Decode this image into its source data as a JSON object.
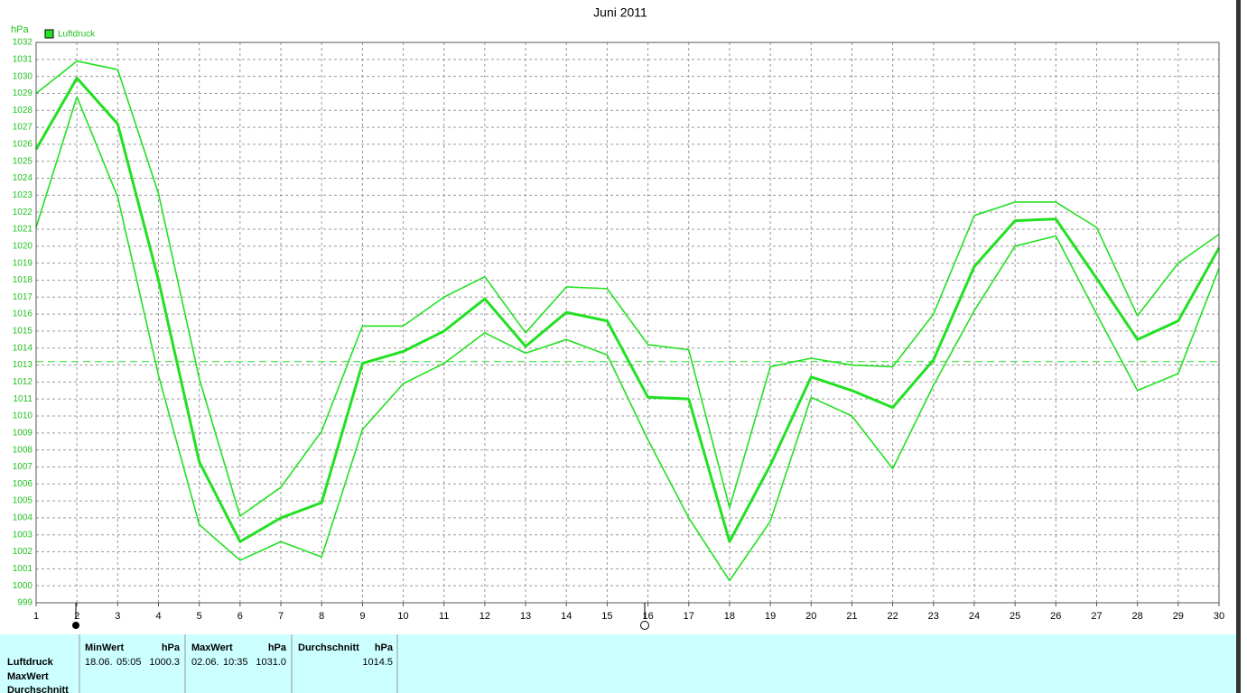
{
  "chart_data": {
    "type": "line",
    "title": "Juni 2011",
    "y_unit": "hPa",
    "x": [
      1,
      2,
      3,
      4,
      5,
      6,
      7,
      8,
      9,
      10,
      11,
      12,
      13,
      14,
      15,
      16,
      17,
      18,
      19,
      20,
      21,
      22,
      23,
      24,
      25,
      26,
      27,
      28,
      29,
      30
    ],
    "xlim": [
      1,
      30
    ],
    "xticks": [
      1,
      2,
      3,
      4,
      5,
      6,
      7,
      8,
      9,
      10,
      11,
      12,
      13,
      14,
      15,
      16,
      17,
      18,
      19,
      20,
      21,
      22,
      23,
      24,
      25,
      26,
      27,
      28,
      29,
      30
    ],
    "ylim": [
      999,
      1032
    ],
    "yticks": [
      999,
      1000,
      1001,
      1002,
      1003,
      1004,
      1005,
      1006,
      1007,
      1008,
      1009,
      1010,
      1011,
      1012,
      1013,
      1014,
      1015,
      1016,
      1017,
      1018,
      1019,
      1020,
      1021,
      1022,
      1023,
      1024,
      1025,
      1026,
      1027,
      1028,
      1029,
      1030,
      1031,
      1032
    ],
    "grid": true,
    "legend": "top-left",
    "series": [
      {
        "name": "Luftdruck",
        "color": "#22e022",
        "values": [
          1025.7,
          1029.9,
          1027.2,
          1018.0,
          1007.3,
          1002.6,
          1004.0,
          1004.9,
          1013.1,
          1013.8,
          1015.0,
          1016.9,
          1014.1,
          1016.1,
          1015.6,
          1011.1,
          1011.0,
          1002.6,
          1007.1,
          1012.3,
          1011.5,
          1010.5,
          1013.3,
          1018.8,
          1021.5,
          1021.6,
          1018.1,
          1014.5,
          1015.6,
          1019.9
        ]
      },
      {
        "color": "#22e022",
        "values": [
          1029.0,
          1030.9,
          1030.4,
          1023.1,
          1012.2,
          1004.1,
          1005.8,
          1009.1,
          1015.3,
          1015.3,
          1017.0,
          1018.2,
          1014.9,
          1017.6,
          1017.5,
          1014.2,
          1013.9,
          1004.6,
          1012.9,
          1013.4,
          1013.0,
          1012.9,
          1016.0,
          1021.8,
          1022.6,
          1022.6,
          1021.1,
          1015.9,
          1019.0,
          1020.7
        ]
      },
      {
        "color": "#22e022",
        "values": [
          1021.1,
          1028.8,
          1022.9,
          1012.4,
          1003.6,
          1001.5,
          1002.6,
          1001.7,
          1009.2,
          1011.9,
          1013.1,
          1014.9,
          1013.7,
          1014.5,
          1013.6,
          1008.6,
          1004.0,
          1000.3,
          1003.8,
          1011.1,
          1010.0,
          1006.9,
          1011.8,
          1016.2,
          1020.0,
          1020.6,
          1016.0,
          1011.5,
          1012.5,
          1018.7
        ]
      }
    ],
    "reference_line": 1013.2
  },
  "summary_table": {
    "row_labels": [
      "Luftdruck",
      "MaxWert",
      "Durchschnitt"
    ],
    "columns": [
      {
        "header": "MinWert",
        "unit": "hPa",
        "date": "18.06.",
        "time": "05:05",
        "value": "1000.3"
      },
      {
        "header": "MaxWert",
        "unit": "hPa",
        "date": "02.06.",
        "time": "10:35",
        "value": "1031.0"
      },
      {
        "header": "Durchschnitt",
        "unit": "hPa",
        "value": "1014.5"
      }
    ]
  }
}
